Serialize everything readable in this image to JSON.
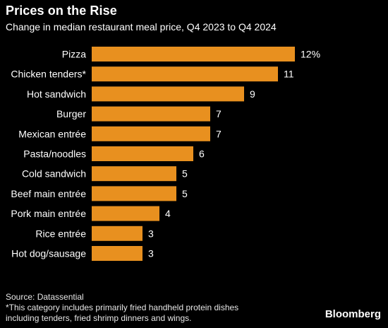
{
  "header": {
    "title": "Prices on the Rise",
    "subtitle": "Change in median restaurant meal price, Q4 2023 to Q4 2024"
  },
  "chart_data": {
    "type": "bar",
    "orientation": "horizontal",
    "title": "Prices on the Rise",
    "subtitle": "Change in median restaurant meal price, Q4 2023 to Q4 2024",
    "categories": [
      "Pizza",
      "Chicken tenders*",
      "Hot sandwich",
      "Burger",
      "Mexican entrée",
      "Pasta/noodles",
      "Cold sandwich",
      "Beef main entrée",
      "Pork main entrée",
      "Rice entrée",
      "Hot dog/sausage"
    ],
    "values": [
      12,
      11,
      9,
      7,
      7,
      6,
      5,
      5,
      4,
      3,
      3
    ],
    "value_labels": [
      "12%",
      "11",
      "9",
      "7",
      "7",
      "6",
      "5",
      "5",
      "4",
      "3",
      "3"
    ],
    "unit": "%",
    "xlim": [
      0,
      12
    ],
    "bar_color": "#E8901F",
    "grid": false,
    "legend": "none"
  },
  "footer": {
    "source": "Source: Datassential",
    "note_line1": "*This category includes primarily fried handheld protein dishes",
    "note_line2": "including tenders, fried shrimp dinners and wings."
  },
  "brand": "Bloomberg"
}
